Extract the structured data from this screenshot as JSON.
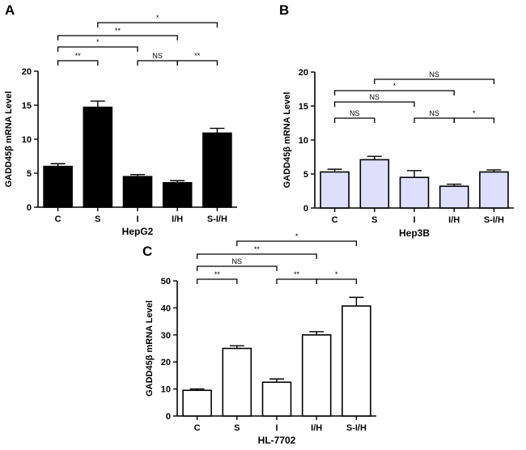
{
  "chart_data": [
    {
      "type": "bar",
      "panel": "A",
      "title": "",
      "xlabel": "HepG2",
      "ylabel": "GADD45β  mRNA Level",
      "ylim": [
        0,
        20
      ],
      "yticks": [
        0,
        5,
        10,
        15,
        20
      ],
      "categories": [
        "C",
        "S",
        "I",
        "I/H",
        "S-I/H"
      ],
      "values": [
        6.0,
        14.7,
        4.5,
        3.6,
        10.9
      ],
      "errors": [
        0.4,
        0.9,
        0.3,
        0.3,
        0.7
      ],
      "bar_color": "#000000",
      "comparisons": [
        {
          "from": 0,
          "to": 1,
          "label": "**"
        },
        {
          "from": 2,
          "to": 3,
          "label": "NS"
        },
        {
          "from": 3,
          "to": 4,
          "label": "**"
        },
        {
          "from": 0,
          "to": 2,
          "label": "*"
        },
        {
          "from": 0,
          "to": 3,
          "label": "**"
        },
        {
          "from": 1,
          "to": 4,
          "label": "*"
        }
      ]
    },
    {
      "type": "bar",
      "panel": "B",
      "title": "",
      "xlabel": "Hep3B",
      "ylabel": "GADD45β  mRNA Level",
      "ylim": [
        0,
        20
      ],
      "yticks": [
        0,
        5,
        10,
        15,
        20
      ],
      "categories": [
        "C",
        "S",
        "I",
        "I/H",
        "S-I/H"
      ],
      "values": [
        5.3,
        7.1,
        4.5,
        3.2,
        5.3
      ],
      "errors": [
        0.4,
        0.5,
        1.0,
        0.3,
        0.3
      ],
      "bar_color": "#dfdffb",
      "comparisons": [
        {
          "from": 0,
          "to": 1,
          "label": "NS"
        },
        {
          "from": 2,
          "to": 3,
          "label": "NS"
        },
        {
          "from": 3,
          "to": 4,
          "label": "*"
        },
        {
          "from": 0,
          "to": 2,
          "label": "NS"
        },
        {
          "from": 0,
          "to": 3,
          "label": "*"
        },
        {
          "from": 1,
          "to": 4,
          "label": "NS"
        }
      ]
    },
    {
      "type": "bar",
      "panel": "C",
      "title": "",
      "xlabel": "HL-7702",
      "ylabel": "GADD45β  mRNA Level",
      "ylim": [
        0,
        50
      ],
      "yticks": [
        0,
        10,
        20,
        30,
        40,
        50
      ],
      "categories": [
        "C",
        "S",
        "I",
        "I/H",
        "S-I/H"
      ],
      "values": [
        9.5,
        25.0,
        12.5,
        30.0,
        40.7
      ],
      "errors": [
        0.5,
        1.0,
        1.2,
        1.2,
        3.2
      ],
      "bar_color": "#ffffff",
      "comparisons": [
        {
          "from": 0,
          "to": 1,
          "label": "**"
        },
        {
          "from": 2,
          "to": 3,
          "label": "**"
        },
        {
          "from": 3,
          "to": 4,
          "label": "*"
        },
        {
          "from": 0,
          "to": 2,
          "label": "NS"
        },
        {
          "from": 0,
          "to": 3,
          "label": "**"
        },
        {
          "from": 1,
          "to": 4,
          "label": "*"
        }
      ]
    }
  ]
}
